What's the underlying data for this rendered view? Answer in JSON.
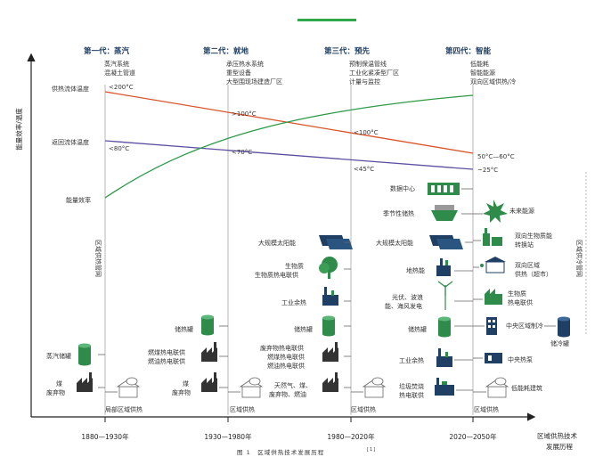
{
  "top_accent_color": "#2ea84a",
  "generations": [
    {
      "title": "第一代：蒸汽",
      "desc": [
        "蒸汽系统",
        "混凝土管道"
      ]
    },
    {
      "title": "第二代：就地",
      "desc": [
        "承压热水系统",
        "重型设备",
        "大型围现场建造厂区"
      ]
    },
    {
      "title": "第三代：预先",
      "desc": [
        "预制保温管线",
        "工业化紧凑型厂区",
        "计量与监控"
      ]
    },
    {
      "title": "第四代：智能",
      "desc": [
        "低能耗",
        "智能能源",
        "双向区域供热/冷"
      ]
    }
  ],
  "y_axis_label": "能量效率/温度",
  "x_axis_label": [
    "区域供热技术",
    "发展历程"
  ],
  "periods": [
    "1880—1930年",
    "1930—1980年",
    "1980—2020年",
    "2020—2050年"
  ],
  "curve_labels": {
    "supply": "供热流体温度",
    "return": "返回流体温度",
    "efficiency": "能量效率"
  },
  "temps": {
    "supply": [
      "<200°C",
      ">100°C",
      "<100°C",
      "50°C—60°C"
    ],
    "return": [
      "<80°C",
      "<70°C",
      "<45°C",
      "~25°C"
    ]
  },
  "colors": {
    "supply": "#d9532b",
    "return": "#5a4fa0",
    "efficiency": "#2e9a48",
    "icon_navy": "#1f3f64",
    "icon_green": "#2e8b4a"
  },
  "vertical_labels": [
    "区域供热管网",
    "区域供冷管网"
  ],
  "gen1_items": [
    "蒸汽储罐",
    "煤",
    "废弃物",
    "局部区域供热"
  ],
  "gen2_items": [
    "储热罐",
    "燃煤热电联供",
    "燃油热电联供",
    "煤",
    "废弃物",
    "区域供热"
  ],
  "gen3_items": [
    "大规模太阳能",
    "生物质",
    "生物质热电联供",
    "工业余热",
    "储热罐",
    "废弃物热电联供",
    "燃煤热电联供",
    "燃油热电联供",
    "天然气、煤、",
    "废弃物、燃油",
    "区域供热"
  ],
  "gen4_left": [
    "数据中心",
    "季节性储热",
    "大规模太阳能",
    "地热能",
    "光伏、波浪",
    "能、海风发电",
    "储热罐",
    "工业余热",
    "垃圾焚烧",
    "热电联供"
  ],
  "gen4_right": [
    "未来能源",
    "双向生物质能",
    "转换站",
    "双向区域",
    "供热（超市）",
    "生物质",
    "热电联供",
    "中央区域制冷",
    "储冷罐",
    "中央热泵",
    "低能耗建筑",
    "区域供热"
  ],
  "caption": "图 1　区域供热技术发展历程",
  "caption_ref": "[1]"
}
